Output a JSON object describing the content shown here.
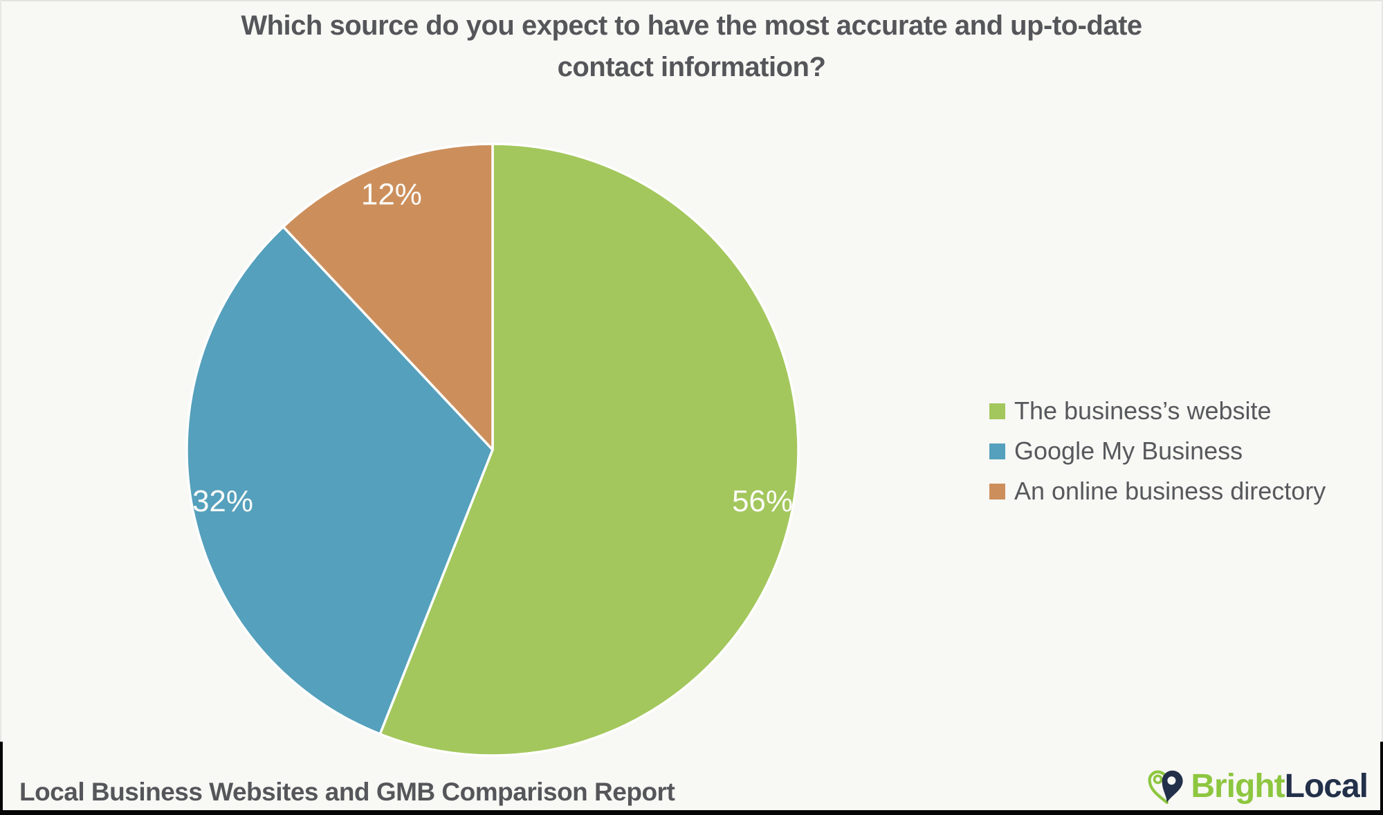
{
  "title": {
    "line1": "Which source do you expect to have the most accurate and up-to-date",
    "line2": "contact information?"
  },
  "chart_data": {
    "type": "pie",
    "labels": [
      "The business’s website",
      "Google My Business",
      "An online business directory"
    ],
    "values": [
      56,
      32,
      12
    ],
    "value_labels": [
      "56%",
      "32%",
      "12%"
    ],
    "colors": [
      "#A3C75C",
      "#55A0BC",
      "#CC8F5C"
    ],
    "title": "Which source do you expect to have the most accurate and up-to-date contact information?",
    "start_angle_deg": 0,
    "direction": "clockwise",
    "legend_position": "right",
    "slice_border_color": "#FFFFFF"
  },
  "footer": {
    "report_name": "Local Business Websites and GMB Comparison Report",
    "logo": {
      "brand_first": "Bright",
      "brand_second": "Local",
      "icon": "brightlocal-heart-pin-icon",
      "green": "#8DC63F",
      "navy": "#22304A"
    }
  },
  "colors": {
    "background": "#F8F8F5",
    "heading_text": "#55565A",
    "legend_text": "#57585C",
    "pie_label_text": "#FCFCFA"
  }
}
